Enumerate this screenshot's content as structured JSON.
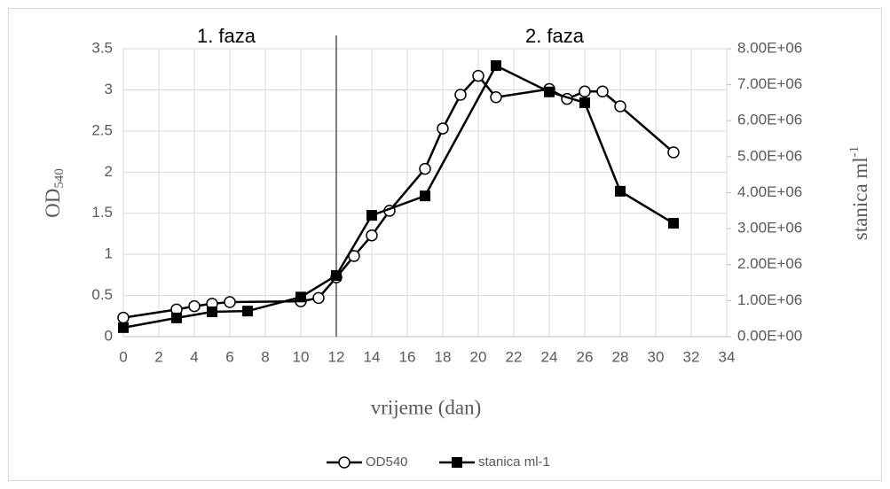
{
  "chart_data": {
    "type": "line",
    "xlabel": "vrijeme (dan)",
    "ylabel": "OD",
    "ylabel_sub": "540",
    "y2label": "stanica ml",
    "y2label_sup": "-1",
    "annotations": [
      {
        "text": "1. faza",
        "x": 5.8
      },
      {
        "text": "2. faza",
        "x": 24.3
      }
    ],
    "divider_x": 12,
    "xlim": [
      0,
      34
    ],
    "xticks": [
      0,
      2,
      4,
      6,
      8,
      10,
      12,
      14,
      16,
      18,
      20,
      22,
      24,
      26,
      28,
      30,
      32,
      34
    ],
    "ylim": [
      0,
      3.5
    ],
    "yticks": [
      0,
      0.5,
      1,
      1.5,
      2,
      2.5,
      3,
      3.5
    ],
    "y2lim": [
      0,
      8000000
    ],
    "y2ticks": [
      {
        "value": 0,
        "label": "0.00E+00"
      },
      {
        "value": 1000000,
        "label": "1.00E+06"
      },
      {
        "value": 2000000,
        "label": "2.00E+06"
      },
      {
        "value": 3000000,
        "label": "3.00E+06"
      },
      {
        "value": 4000000,
        "label": "4.00E+06"
      },
      {
        "value": 5000000,
        "label": "5.00E+06"
      },
      {
        "value": 6000000,
        "label": "6.00E+06"
      },
      {
        "value": 7000000,
        "label": "7.00E+06"
      },
      {
        "value": 8000000,
        "label": "8.00E+06"
      }
    ],
    "grid": true,
    "legend": "bottom",
    "series": [
      {
        "name": "OD540",
        "color": "#000000",
        "marker": "circle",
        "x": [
          0,
          3,
          4,
          5,
          6,
          10,
          11,
          12,
          13,
          14,
          15,
          17,
          18,
          19,
          20,
          21,
          24,
          25,
          26,
          27,
          28,
          31
        ],
        "values": [
          0.23,
          0.33,
          0.37,
          0.4,
          0.42,
          0.43,
          0.47,
          0.72,
          0.98,
          1.23,
          1.53,
          2.04,
          2.53,
          2.94,
          3.17,
          2.91,
          3.01,
          2.89,
          2.98,
          2.98,
          2.8,
          2.24
        ]
      },
      {
        "name": "stanica ml-1",
        "color": "#000000",
        "marker": "square",
        "axis": "y2",
        "x": [
          0,
          3,
          5,
          7,
          10,
          12,
          14,
          17,
          21,
          24,
          26,
          28,
          31
        ],
        "values": [
          250000,
          520000,
          690000,
          710000,
          1100000,
          1700000,
          3370000,
          3910000,
          7530000,
          6800000,
          6500000,
          4040000,
          3150000
        ]
      }
    ]
  }
}
